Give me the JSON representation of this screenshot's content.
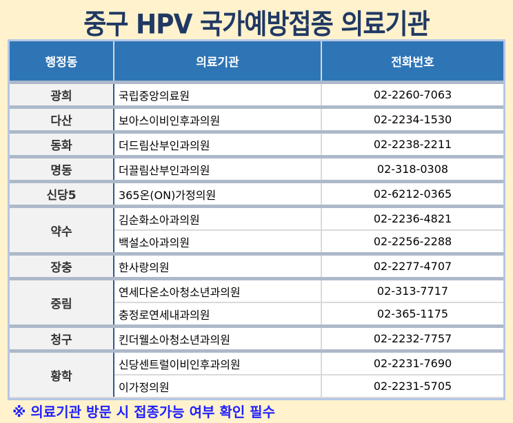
{
  "title": "중구 HPV 국가예방접종 의료기관",
  "headers": [
    "행정동",
    "의료기관",
    "전화번호"
  ],
  "groups": [
    {
      "dong": "광희",
      "rows": [
        {
          "name": "국립중앙의료원",
          "phone": "02-2260-7063"
        }
      ]
    },
    {
      "dong": "다산",
      "rows": [
        {
          "name": "보아스이비인후과의원",
          "phone": "02-2234-1530"
        }
      ]
    },
    {
      "dong": "동화",
      "rows": [
        {
          "name": "더드림산부인과의원",
          "phone": "02-2238-2211"
        }
      ]
    },
    {
      "dong": "명동",
      "rows": [
        {
          "name": "더끌림산부인과의원",
          "phone": "02-318-0308"
        }
      ]
    },
    {
      "dong": "신당5",
      "rows": [
        {
          "name": "365온(ON)가정의원",
          "phone": "02-6212-0365"
        }
      ]
    },
    {
      "dong": "약수",
      "rows": [
        {
          "name": "김순화소아과의원",
          "phone": "02-2236-4821"
        },
        {
          "name": "백설소아과의원",
          "phone": "02-2256-2288"
        }
      ]
    },
    {
      "dong": "장충",
      "rows": [
        {
          "name": "한사랑의원",
          "phone": "02-2277-4707"
        }
      ]
    },
    {
      "dong": "중림",
      "rows": [
        {
          "name": "연세다온소아청소년과의원",
          "phone": "02-313-7717"
        },
        {
          "name": "충정로연세내과의원",
          "phone": "02-365-1175"
        }
      ]
    },
    {
      "dong": "청구",
      "rows": [
        {
          "name": "킨더웰소아청소년과의원",
          "phone": "02-2232-7757"
        }
      ]
    },
    {
      "dong": "황학",
      "rows": [
        {
          "name": "신당센트럴이비인후과의원",
          "phone": "02-2231-7690"
        },
        {
          "name": "이가정의원",
          "phone": "02-2231-5705"
        }
      ]
    }
  ],
  "note": "※ 의료기관 방문 시 접종가능 여부 확인 필수"
}
